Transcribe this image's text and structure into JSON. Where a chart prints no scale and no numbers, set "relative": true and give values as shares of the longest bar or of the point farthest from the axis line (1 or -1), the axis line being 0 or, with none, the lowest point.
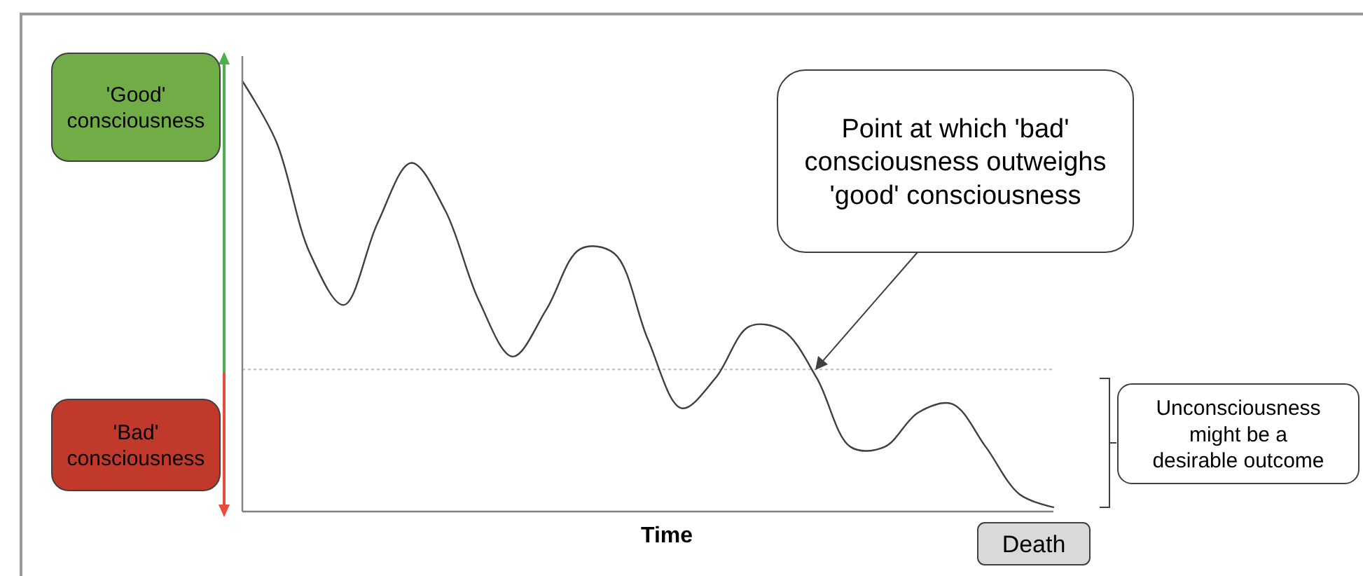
{
  "chart_data": {
    "type": "line",
    "relative": true,
    "xlabel": "Time",
    "categories": [
      null,
      null,
      null,
      null,
      null,
      null,
      null,
      null,
      null,
      null,
      null,
      null,
      null,
      null,
      null,
      null,
      null,
      null,
      null,
      null,
      null,
      null,
      null,
      null,
      null
    ],
    "series": [
      {
        "color": "#404040",
        "values": [
          1.0,
          0.86,
          0.6,
          0.48,
          0.67,
          0.81,
          0.7,
          0.49,
          0.36,
          0.47,
          0.61,
          0.6,
          0.4,
          0.24,
          0.31,
          0.43,
          0.42,
          0.31,
          0.15,
          0.15,
          0.23,
          0.25,
          0.15,
          0.04,
          0.01
        ]
      }
    ],
    "ref_lines": [
      {
        "axis": "y",
        "value": 0.33,
        "color": "#bfbfbf",
        "line_style": "dotted"
      }
    ],
    "annotations": [
      "'Good' consciousness",
      "'Bad' consciousness",
      "Point at which 'bad' consciousness outweighs 'good' consciousness",
      "Unconsciousness might be a desirable outcome",
      "Death"
    ]
  }
}
